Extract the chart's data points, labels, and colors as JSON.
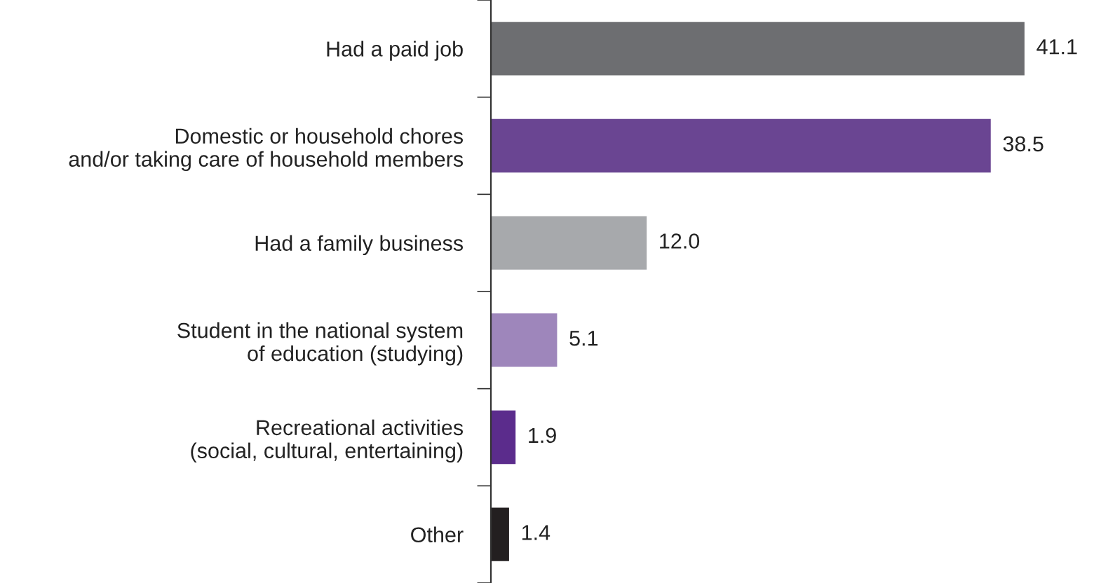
{
  "chart_data": {
    "type": "bar",
    "orientation": "horizontal",
    "categories": [
      "Had a paid job",
      "Domestic or household chores\nand/or taking care of household members",
      "Had a family business",
      "Student in the national system\nof education (studying)",
      "Recreational activities\n(social, cultural, entertaining)",
      "Other"
    ],
    "values": [
      41.1,
      38.5,
      12.0,
      5.1,
      1.9,
      1.4
    ],
    "value_labels": [
      "41.1",
      "38.5",
      "12.0",
      "5.1",
      "1.9",
      "1.4"
    ],
    "colors": [
      "#6d6e71",
      "#6a4592",
      "#a7a9ac",
      "#9e86bb",
      "#5b2c8c",
      "#231f20"
    ],
    "grid": false,
    "legend": false
  }
}
